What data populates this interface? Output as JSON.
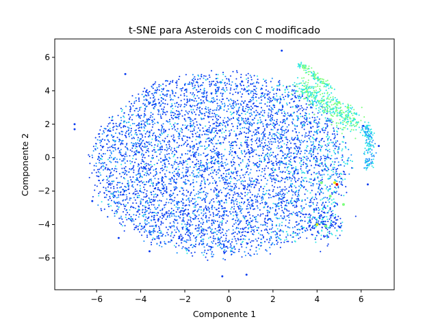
{
  "chart_data": {
    "type": "scatter",
    "title": "t-SNE para Asteroids con C modificado",
    "xlabel": "Componente 1",
    "ylabel": "Componente 2",
    "xlim": [
      -7.9,
      7.5
    ],
    "ylim": [
      -7.9,
      7.1
    ],
    "xticks": [
      -6,
      -4,
      -2,
      0,
      2,
      4,
      6
    ],
    "yticks": [
      -6,
      -4,
      -2,
      0,
      2,
      4,
      6
    ],
    "xtick_labels": [
      "−6",
      "−4",
      "−2",
      "0",
      "2",
      "4",
      "6"
    ],
    "ytick_labels": [
      "−6",
      "−4",
      "−2",
      "0",
      "2",
      "4",
      "6"
    ],
    "grid": false,
    "legend": "none",
    "colormap": "jet",
    "colors": {
      "dominant": "#0a3cf0",
      "medium": "#1e90ff",
      "cyan": "#2ee6e6",
      "green": "#7cff7c",
      "yellow": "#e8e800",
      "red": "#e00000"
    },
    "main_cluster": {
      "center": [
        -0.4,
        -0.4
      ],
      "radius_x": 5.8,
      "radius_y": 5.4,
      "point_count_estimate": 25000
    },
    "highlight_points": [
      {
        "x": 4.9,
        "y": -1.6,
        "color": "red"
      },
      {
        "x": 4.8,
        "y": -1.5,
        "color": "yellow"
      },
      {
        "x": 4.2,
        "y": -1.5,
        "color": "green"
      },
      {
        "x": 4.6,
        "y": -2.3,
        "color": "green"
      },
      {
        "x": 5.2,
        "y": -2.8,
        "color": "green"
      },
      {
        "x": 5.0,
        "y": 3.3,
        "color": "green"
      },
      {
        "x": 5.4,
        "y": 3.0,
        "color": "green"
      },
      {
        "x": 4.0,
        "y": -4.0,
        "color": "yellow"
      },
      {
        "x": 4.4,
        "y": -4.1,
        "color": "green"
      }
    ],
    "outlier_points": [
      {
        "x": -7.0,
        "y": 1.7
      },
      {
        "x": -7.0,
        "y": 2.0
      },
      {
        "x": -6.2,
        "y": -2.6
      },
      {
        "x": -4.7,
        "y": 5.0
      },
      {
        "x": -3.6,
        "y": -5.6
      },
      {
        "x": -5.0,
        "y": -4.8
      },
      {
        "x": -0.3,
        "y": -7.1
      },
      {
        "x": 0.8,
        "y": -7.0
      },
      {
        "x": 2.4,
        "y": 6.4
      },
      {
        "x": 6.8,
        "y": 0.7
      },
      {
        "x": 6.1,
        "y": 1.9
      },
      {
        "x": 6.3,
        "y": -1.6
      }
    ]
  }
}
